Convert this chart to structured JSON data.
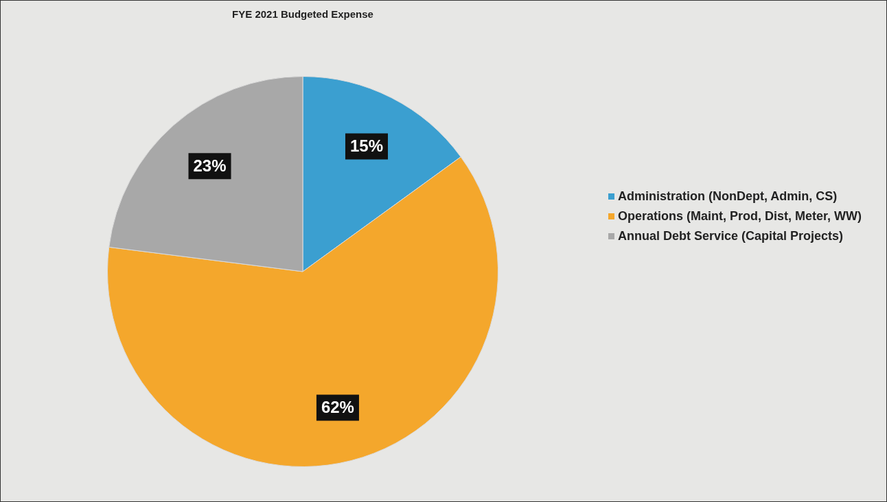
{
  "chart_data": {
    "type": "pie",
    "title": "FYE 2021 Budgeted Expense",
    "categories": [
      "Administration (NonDept, Admin, CS)",
      "Operations (Maint, Prod, Dist, Meter, WW)",
      "Annual Debt Service (Capital Projects)"
    ],
    "values": [
      15,
      62,
      23
    ],
    "value_labels": [
      "15%",
      "62%",
      "23%"
    ],
    "colors": [
      "#3b9fd0",
      "#f4a72c",
      "#a8a8a8"
    ],
    "legend": "right"
  }
}
